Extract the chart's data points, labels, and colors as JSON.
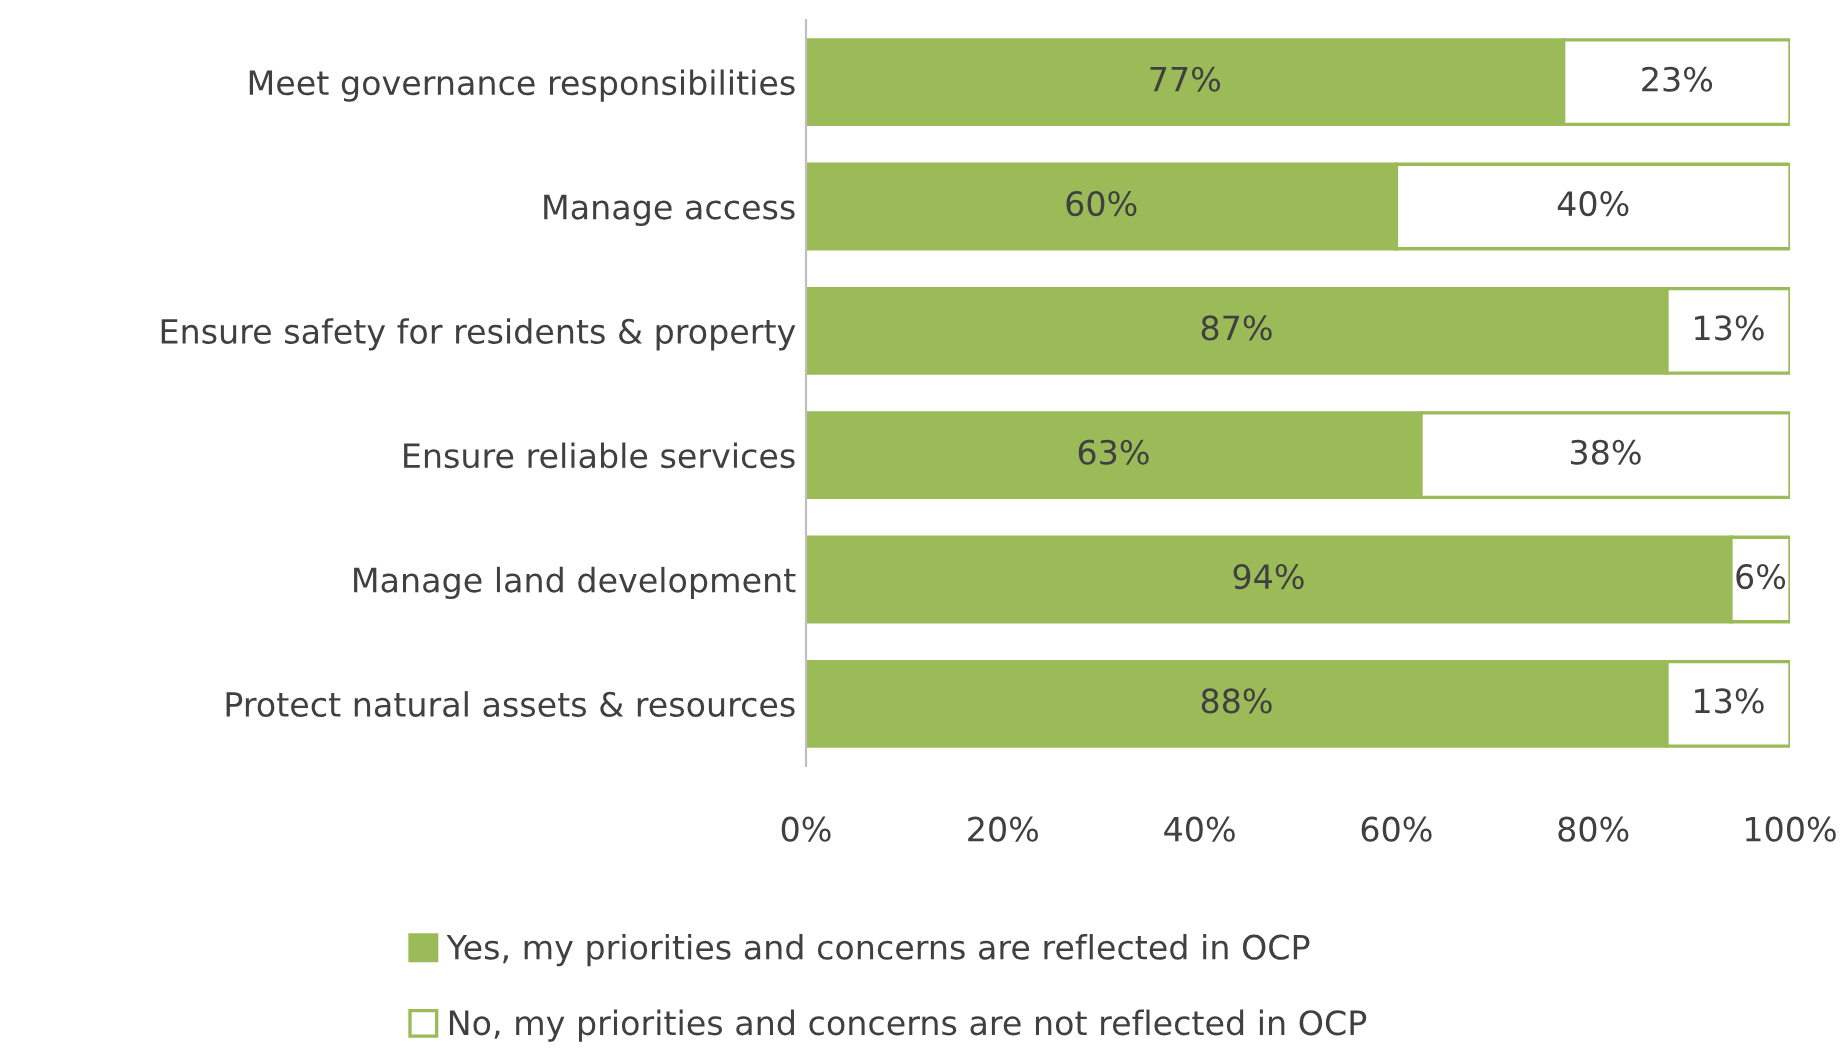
{
  "chart_data": {
    "type": "bar",
    "orientation": "horizontal",
    "stacked": true,
    "categories": [
      "Meet governance responsibilities",
      "Manage access",
      "Ensure safety for residents & property",
      "Ensure reliable services",
      "Manage land development",
      "Protect natural assets & resources"
    ],
    "series": [
      {
        "name": "Yes, my priorities and concerns are reflected in OCP",
        "color": "#9bbb59",
        "values": [
          77,
          60,
          87.5,
          62.5,
          94,
          87.5
        ],
        "value_labels": [
          "77%",
          "60%",
          "87%",
          "63%",
          "94%",
          "88%"
        ]
      },
      {
        "name": "No, my priorities and concerns are not reflected in OCP",
        "color": "#ffffff",
        "values": [
          23,
          40,
          12.5,
          37.5,
          6,
          12.5
        ],
        "value_labels": [
          "23%",
          "40%",
          "13%",
          "38%",
          "6%",
          "13%"
        ]
      }
    ],
    "xlim": [
      0,
      100
    ],
    "xticks": [
      {
        "value": 0,
        "label": "0%"
      },
      {
        "value": 20,
        "label": "20%"
      },
      {
        "value": 40,
        "label": "40%"
      },
      {
        "value": 60,
        "label": "60%"
      },
      {
        "value": 80,
        "label": "80%"
      },
      {
        "value": 100,
        "label": "100%"
      }
    ],
    "grid": false,
    "legend": "bottom"
  }
}
